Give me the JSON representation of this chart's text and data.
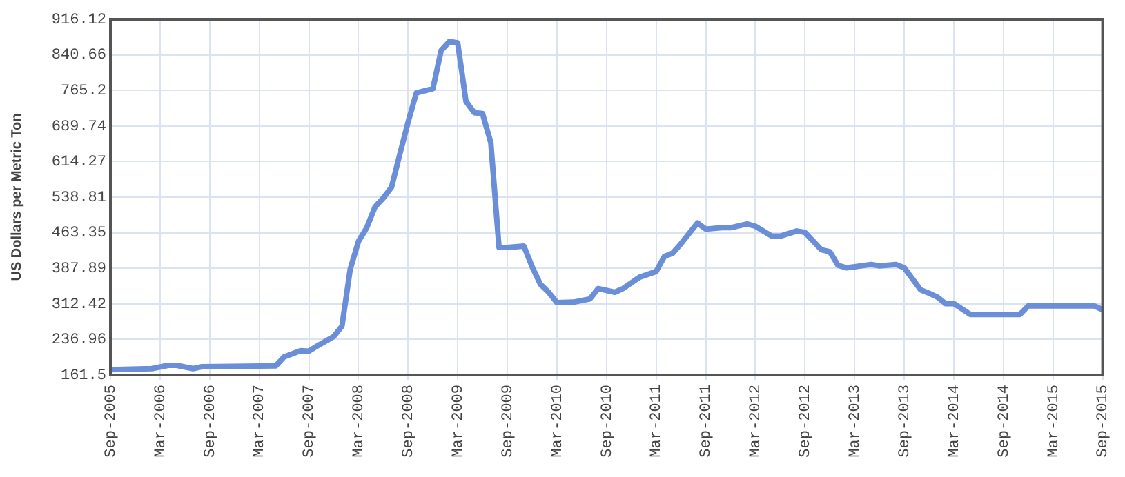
{
  "chart_data": {
    "type": "line",
    "ylabel": "US Dollars per Metric Ton",
    "xlim": [
      "2005-09",
      "2015-09"
    ],
    "xticks": [
      {
        "value": "2005-09",
        "label": "Sep-2005"
      },
      {
        "value": "2006-03",
        "label": "Mar-2006"
      },
      {
        "value": "2006-09",
        "label": "Sep-2006"
      },
      {
        "value": "2007-03",
        "label": "Mar-2007"
      },
      {
        "value": "2007-09",
        "label": "Sep-2007"
      },
      {
        "value": "2008-03",
        "label": "Mar-2008"
      },
      {
        "value": "2008-09",
        "label": "Sep-2008"
      },
      {
        "value": "2009-03",
        "label": "Mar-2009"
      },
      {
        "value": "2009-09",
        "label": "Sep-2009"
      },
      {
        "value": "2010-03",
        "label": "Mar-2010"
      },
      {
        "value": "2010-09",
        "label": "Sep-2010"
      },
      {
        "value": "2011-03",
        "label": "Mar-2011"
      },
      {
        "value": "2011-09",
        "label": "Sep-2011"
      },
      {
        "value": "2012-03",
        "label": "Mar-2012"
      },
      {
        "value": "2012-09",
        "label": "Sep-2012"
      },
      {
        "value": "2013-03",
        "label": "Mar-2013"
      },
      {
        "value": "2013-09",
        "label": "Sep-2013"
      },
      {
        "value": "2014-03",
        "label": "Mar-2014"
      },
      {
        "value": "2014-09",
        "label": "Sep-2014"
      },
      {
        "value": "2015-03",
        "label": "Mar-2015"
      },
      {
        "value": "2015-09",
        "label": "Sep-2015"
      }
    ],
    "ylim": [
      161.5,
      916.12
    ],
    "yticks": [
      161.5,
      236.96,
      312.42,
      387.89,
      463.35,
      538.81,
      614.27,
      689.74,
      765.2,
      840.66,
      916.12
    ],
    "grid": true,
    "legend": false,
    "marker": "none",
    "line_style": "solid",
    "x": [
      "2005-09",
      "2006-02",
      "2006-04",
      "2006-05",
      "2006-07",
      "2006-08",
      "2007-05",
      "2007-06",
      "2007-08",
      "2007-09",
      "2007-10",
      "2007-12",
      "2008-01",
      "2008-02",
      "2008-03",
      "2008-04",
      "2008-05",
      "2008-06",
      "2008-07",
      "2008-08",
      "2008-09",
      "2008-10",
      "2008-12",
      "2009-01",
      "2009-02",
      "2009-03",
      "2009-04",
      "2009-05",
      "2009-06",
      "2009-07",
      "2009-08",
      "2009-09",
      "2009-11",
      "2009-12",
      "2010-01",
      "2010-02",
      "2010-03",
      "2010-05",
      "2010-07",
      "2010-08",
      "2010-10",
      "2010-11",
      "2011-01",
      "2011-03",
      "2011-04",
      "2011-05",
      "2011-06",
      "2011-08",
      "2011-09",
      "2011-11",
      "2011-12",
      "2012-02",
      "2012-03",
      "2012-05",
      "2012-06",
      "2012-08",
      "2012-09",
      "2012-11",
      "2012-12",
      "2013-01",
      "2013-02",
      "2013-03",
      "2013-05",
      "2013-06",
      "2013-08",
      "2013-09",
      "2013-11",
      "2013-12",
      "2014-01",
      "2014-02",
      "2014-03",
      "2014-05",
      "2014-11",
      "2014-12",
      "2015-08",
      "2015-09"
    ],
    "series": [
      {
        "color": "#6a8fd8",
        "values": [
          173,
          175,
          182,
          182,
          175,
          179,
          181,
          200,
          213,
          212,
          223,
          243,
          265,
          386,
          445,
          474,
          518,
          537,
          560,
          630,
          698,
          760,
          769,
          850,
          869,
          866,
          742,
          718,
          716,
          655,
          432,
          432,
          435,
          391,
          354,
          337,
          315,
          316,
          323,
          345,
          337,
          345,
          369,
          381,
          413,
          420,
          440,
          484,
          471,
          474,
          474,
          482,
          477,
          456,
          456,
          467,
          464,
          427,
          423,
          394,
          389,
          391,
          396,
          393,
          396,
          389,
          342,
          335,
          327,
          313,
          313,
          290,
          290,
          308,
          308,
          300
        ]
      }
    ]
  }
}
